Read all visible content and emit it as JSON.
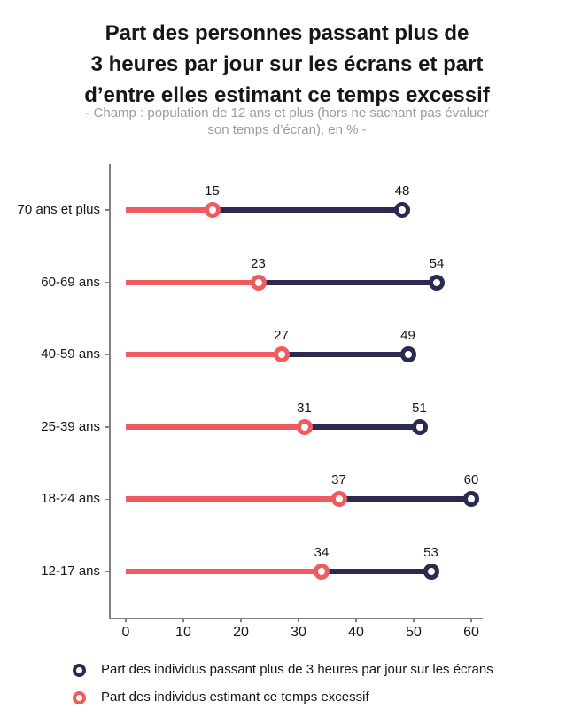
{
  "title": {
    "lines": [
      "Part des personnes passant plus de",
      "3 heures par jour sur les écrans et part",
      "d’entre elles estimant ce temps excessif"
    ]
  },
  "subtitle": {
    "lines": [
      "- Champ : population de 12 ans et plus (hors ne sachant pas évaluer",
      "son temps d’écran), en % -"
    ]
  },
  "chart_data": {
    "type": "dumbbell",
    "orientation": "horizontal",
    "categories": [
      "70 ans et plus",
      "60-69 ans",
      "40-59 ans",
      "25-39 ans",
      "18-24 ans",
      "12-17 ans"
    ],
    "series": [
      {
        "name": "Part des individus passant plus de 3 heures par jour sur les écrans",
        "color": "#2a2b4f",
        "values": [
          48,
          54,
          49,
          51,
          60,
          53
        ]
      },
      {
        "name": "Part des individus estimant ce temps excessif",
        "color": "#ee5c5f",
        "values": [
          15,
          23,
          27,
          31,
          37,
          34
        ]
      }
    ],
    "unit": "%",
    "xlim": [
      0,
      60
    ],
    "xticks": [
      0,
      10,
      20,
      30,
      40,
      50,
      60
    ],
    "grid": false,
    "value_labels": true,
    "legend_position": "bottom"
  },
  "colors": {
    "navy": "#2a2b4f",
    "red": "#ee5c5f",
    "axis": "#7f7f7f",
    "text": "#161616",
    "subtitle": "#9b9b9b",
    "background": "#ffffff"
  }
}
